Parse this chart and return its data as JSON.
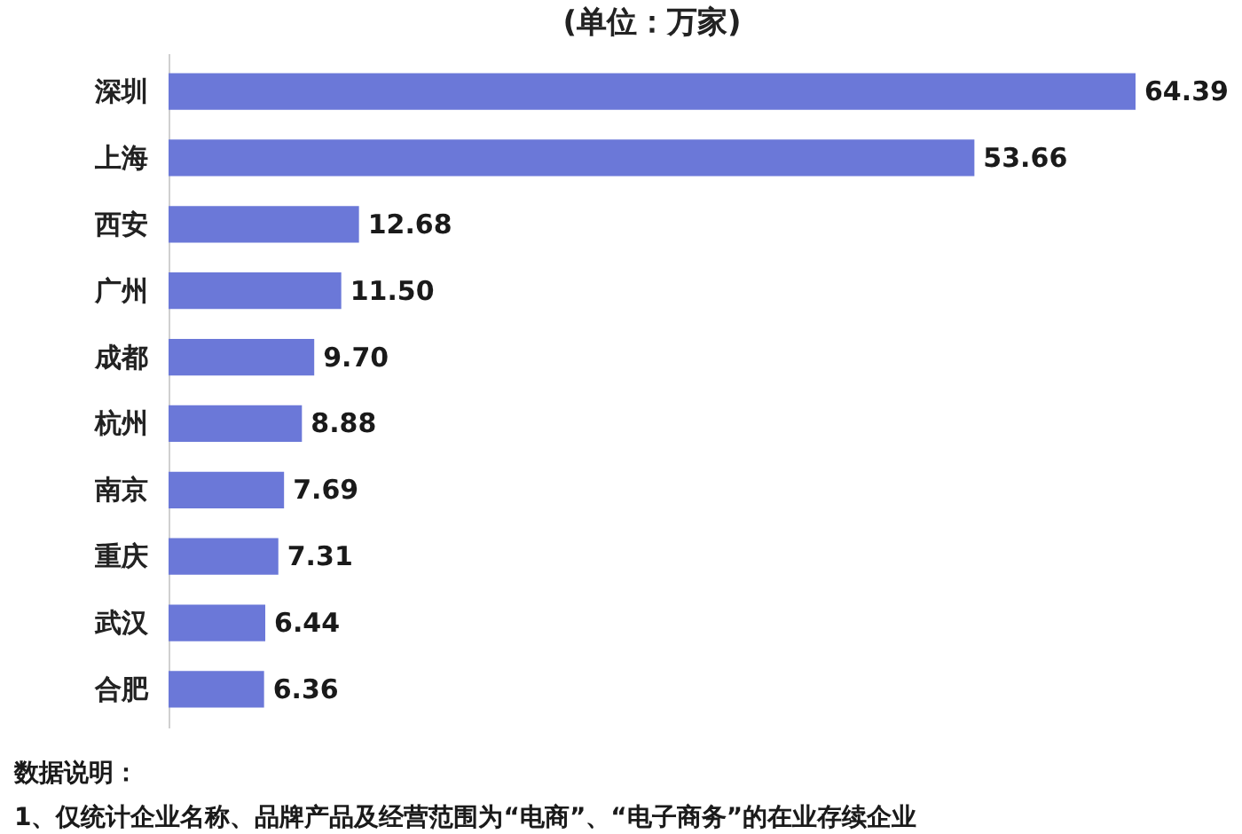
{
  "chart_data": {
    "type": "bar",
    "orientation": "horizontal",
    "title": "(单位：万家)",
    "categories": [
      "深圳",
      "上海",
      "西安",
      "广州",
      "成都",
      "杭州",
      "南京",
      "重庆",
      "武汉",
      "合肥"
    ],
    "values": [
      64.39,
      53.66,
      12.68,
      11.5,
      9.7,
      8.88,
      7.69,
      7.31,
      6.44,
      6.36
    ],
    "value_labels": [
      "64.39",
      "53.66",
      "12.68",
      "11.50",
      "9.70",
      "8.88",
      "7.69",
      "7.31",
      "6.44",
      "6.36"
    ],
    "color": "#6b78d8",
    "annotations": [
      "数据说明：",
      "1、仅统计企业名称、品牌产品及经营范围为“电商”、“电子商务”的在业存续企业"
    ]
  }
}
